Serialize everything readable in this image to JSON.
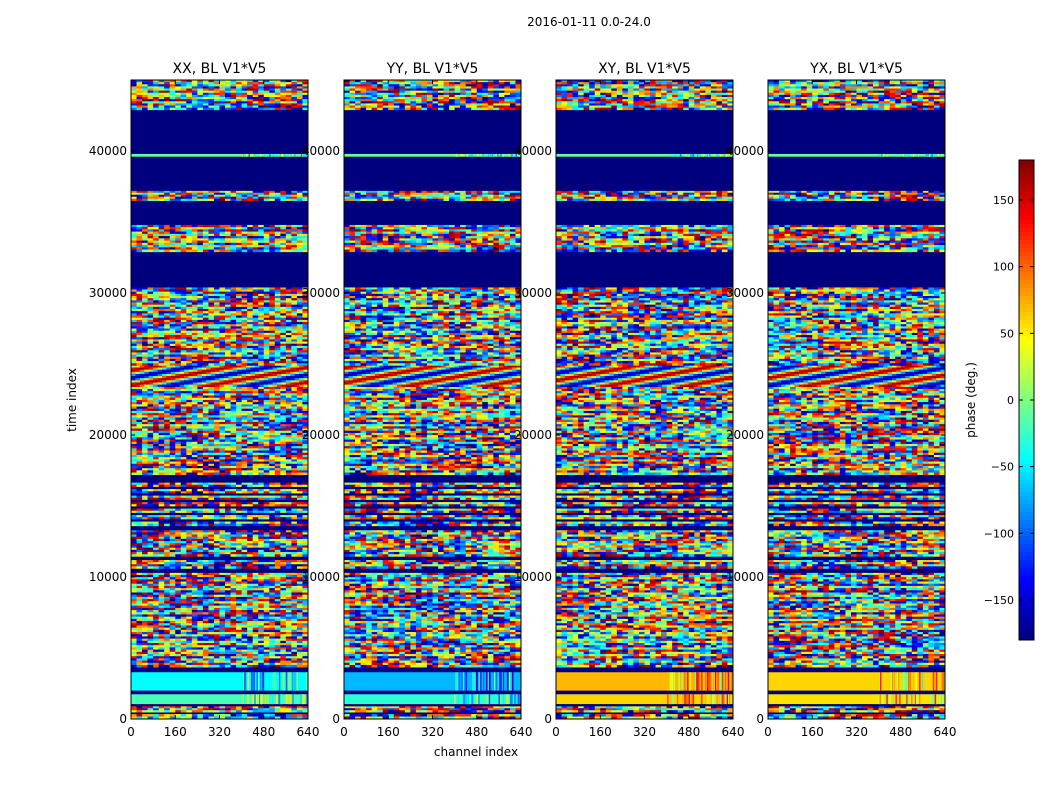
{
  "figure": {
    "suptitle": "2016-01-11 0.0-24.0"
  },
  "chart_data": {
    "type": "heatmap",
    "title": "2016-01-11 0.0-24.0",
    "xlabel": "channel index",
    "ylabel": "time index",
    "xlim": [
      0,
      640
    ],
    "ylim": [
      0,
      45000
    ],
    "x_ticks": [
      0,
      160,
      320,
      480,
      640
    ],
    "y_ticks": [
      0,
      10000,
      20000,
      30000,
      40000
    ],
    "panels": [
      {
        "title": "XX, BL V1*V5",
        "pol": "XX"
      },
      {
        "title": "YY, BL V1*V5",
        "pol": "YY"
      },
      {
        "title": "XY, BL V1*V5",
        "pol": "XY"
      },
      {
        "title": "YX, BL V1*V5",
        "pol": "YX"
      }
    ],
    "colorbar": {
      "label": "phase (deg.)",
      "range": [
        -180,
        180
      ],
      "ticks": [
        -150,
        -100,
        -50,
        0,
        50,
        100,
        150
      ],
      "tick_labels": [
        "−150",
        "−100",
        "−50",
        "0",
        "50",
        "100",
        "150"
      ],
      "colormap": "jet"
    },
    "bands": [
      {
        "t0": 0,
        "t1": 350,
        "kind": "noise"
      },
      {
        "t0": 350,
        "t1": 480,
        "kind": "navy"
      },
      {
        "t0": 480,
        "t1": 900,
        "kind": "noise"
      },
      {
        "t0": 900,
        "t1": 1050,
        "kind": "navy"
      },
      {
        "t0": 1050,
        "t1": 1750,
        "kind": "flat",
        "XX": -20,
        "YY": -30,
        "XY": 60,
        "YX": 55
      },
      {
        "t0": 1750,
        "t1": 2000,
        "kind": "navy"
      },
      {
        "t0": 2000,
        "t1": 3300,
        "kind": "flat",
        "XX": -45,
        "YY": -70,
        "XY": 70,
        "YX": 60
      },
      {
        "t0": 3300,
        "t1": 3650,
        "kind": "navy"
      },
      {
        "t0": 3650,
        "t1": 10300,
        "kind": "noise"
      },
      {
        "t0": 10300,
        "t1": 10600,
        "kind": "navy"
      },
      {
        "t0": 10600,
        "t1": 11200,
        "kind": "noise"
      },
      {
        "t0": 11200,
        "t1": 11450,
        "kind": "navy"
      },
      {
        "t0": 11450,
        "t1": 13300,
        "kind": "noise"
      },
      {
        "t0": 13300,
        "t1": 13600,
        "kind": "navy"
      },
      {
        "t0": 13600,
        "t1": 16800,
        "kind": "stripes"
      },
      {
        "t0": 16800,
        "t1": 17200,
        "kind": "navy"
      },
      {
        "t0": 17200,
        "t1": 23400,
        "kind": "noise"
      },
      {
        "t0": 23400,
        "t1": 24900,
        "kind": "swirl"
      },
      {
        "t0": 24900,
        "t1": 30400,
        "kind": "noise"
      },
      {
        "t0": 30400,
        "t1": 31200,
        "kind": "navy"
      },
      {
        "t0": 31200,
        "t1": 32900,
        "kind": "navy"
      },
      {
        "t0": 32900,
        "t1": 34800,
        "kind": "noise"
      },
      {
        "t0": 34800,
        "t1": 36500,
        "kind": "navy"
      },
      {
        "t0": 36500,
        "t1": 37200,
        "kind": "noise"
      },
      {
        "t0": 37200,
        "t1": 39600,
        "kind": "navy"
      },
      {
        "t0": 39600,
        "t1": 39800,
        "kind": "flat",
        "XX": -10,
        "YY": -10,
        "XY": -10,
        "YX": -10
      },
      {
        "t0": 39800,
        "t1": 42900,
        "kind": "navy"
      },
      {
        "t0": 42900,
        "t1": 45000,
        "kind": "noise"
      }
    ]
  }
}
